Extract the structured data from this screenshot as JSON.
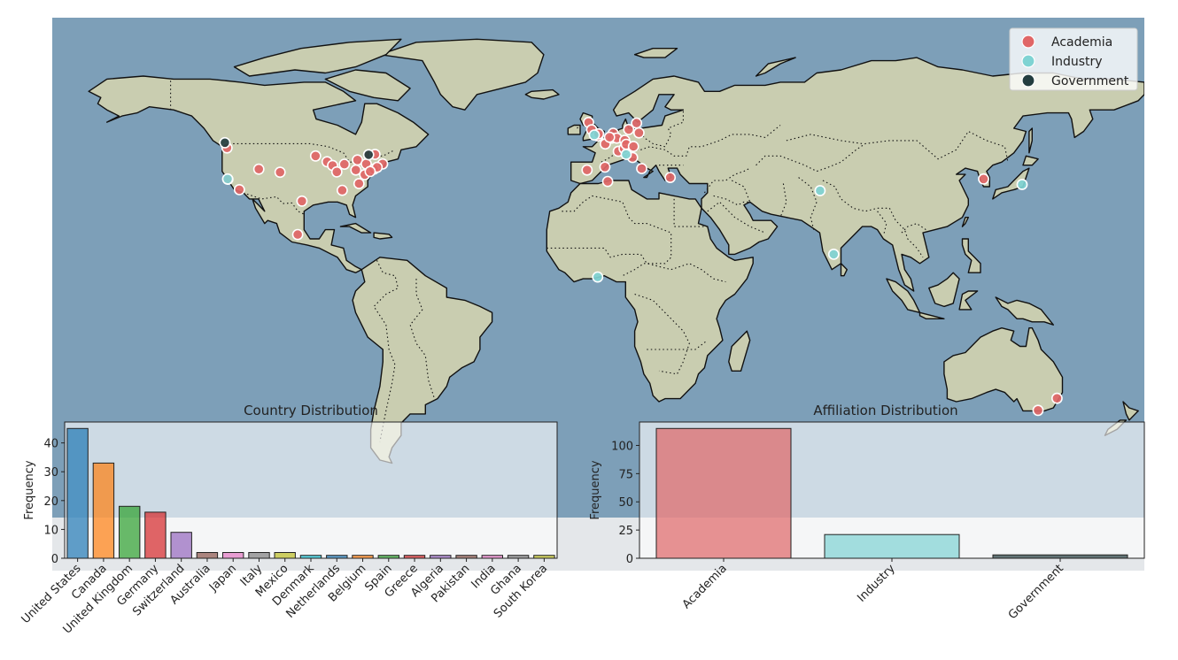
{
  "colors": {
    "academia": "#e06666",
    "industry": "#7fd3d3",
    "government": "#233d3f",
    "ocean": "#7d9fb8",
    "land": "#c9cdb0"
  },
  "legend": {
    "items": [
      {
        "label": "Academia",
        "color": "#e06666"
      },
      {
        "label": "Industry",
        "color": "#7fd3d3"
      },
      {
        "label": "Government",
        "color": "#233d3f"
      }
    ],
    "placement": "top-right"
  },
  "map_points": [
    {
      "lon": -122.4,
      "lat": 47.6,
      "cat": "academia"
    },
    {
      "lon": -122.1,
      "lat": 37.4,
      "cat": "academia"
    },
    {
      "lon": -118.3,
      "lat": 34.0,
      "cat": "academia"
    },
    {
      "lon": -111.9,
      "lat": 40.7,
      "cat": "academia"
    },
    {
      "lon": -104.9,
      "lat": 39.7,
      "cat": "academia"
    },
    {
      "lon": -97.7,
      "lat": 30.3,
      "cat": "academia"
    },
    {
      "lon": -99.1,
      "lat": 19.4,
      "cat": "academia"
    },
    {
      "lon": -93.2,
      "lat": 45.0,
      "cat": "academia"
    },
    {
      "lon": -89.4,
      "lat": 43.1,
      "cat": "academia"
    },
    {
      "lon": -87.6,
      "lat": 41.9,
      "cat": "academia"
    },
    {
      "lon": -86.2,
      "lat": 39.8,
      "cat": "academia"
    },
    {
      "lon": -84.4,
      "lat": 33.8,
      "cat": "academia"
    },
    {
      "lon": -83.7,
      "lat": 42.3,
      "cat": "academia"
    },
    {
      "lon": -79.9,
      "lat": 40.4,
      "cat": "academia"
    },
    {
      "lon": -79.4,
      "lat": 43.7,
      "cat": "academia"
    },
    {
      "lon": -78.9,
      "lat": 36.0,
      "cat": "academia"
    },
    {
      "lon": -77.0,
      "lat": 38.9,
      "cat": "academia"
    },
    {
      "lon": -76.5,
      "lat": 42.4,
      "cat": "academia"
    },
    {
      "lon": -75.7,
      "lat": 45.4,
      "cat": "academia"
    },
    {
      "lon": -74.0,
      "lat": 40.7,
      "cat": "academia"
    },
    {
      "lon": -73.6,
      "lat": 45.5,
      "cat": "academia"
    },
    {
      "lon": -71.1,
      "lat": 42.4,
      "cat": "academia"
    },
    {
      "lon": -72.9,
      "lat": 41.3,
      "cat": "academia"
    },
    {
      "lon": -75.2,
      "lat": 39.95,
      "cat": "academia"
    },
    {
      "lon": -123.1,
      "lat": 49.3,
      "cat": "government"
    },
    {
      "lon": -75.7,
      "lat": 45.4,
      "cat": "government"
    },
    {
      "lon": -122.2,
      "lat": 37.5,
      "cat": "industry"
    },
    {
      "lon": -3.2,
      "lat": 55.9,
      "cat": "academia"
    },
    {
      "lon": -2.2,
      "lat": 53.5,
      "cat": "academia"
    },
    {
      "lon": -0.1,
      "lat": 51.5,
      "cat": "academia"
    },
    {
      "lon": -1.3,
      "lat": 51.8,
      "cat": "industry"
    },
    {
      "lon": 0.1,
      "lat": 52.2,
      "cat": "academia"
    },
    {
      "lon": 2.3,
      "lat": 48.9,
      "cat": "academia"
    },
    {
      "lon": 4.9,
      "lat": 52.4,
      "cat": "academia"
    },
    {
      "lon": 4.4,
      "lat": 50.8,
      "cat": "academia"
    },
    {
      "lon": 6.1,
      "lat": 50.8,
      "cat": "academia"
    },
    {
      "lon": 6.6,
      "lat": 46.5,
      "cat": "academia"
    },
    {
      "lon": 8.5,
      "lat": 47.4,
      "cat": "academia"
    },
    {
      "lon": 8.7,
      "lat": 50.1,
      "cat": "academia"
    },
    {
      "lon": 9.2,
      "lat": 48.8,
      "cat": "academia"
    },
    {
      "lon": 10.0,
      "lat": 53.6,
      "cat": "academia"
    },
    {
      "lon": 11.6,
      "lat": 48.1,
      "cat": "academia"
    },
    {
      "lon": 12.6,
      "lat": 55.7,
      "cat": "academia"
    },
    {
      "lon": 13.4,
      "lat": 52.5,
      "cat": "academia"
    },
    {
      "lon": 11.3,
      "lat": 44.5,
      "cat": "academia"
    },
    {
      "lon": 9.2,
      "lat": 45.5,
      "cat": "industry"
    },
    {
      "lon": 3.7,
      "lat": 51.1,
      "cat": "academia"
    },
    {
      "lon": 14.3,
      "lat": 40.9,
      "cat": "academia"
    },
    {
      "lon": -3.7,
      "lat": 40.4,
      "cat": "academia"
    },
    {
      "lon": 2.2,
      "lat": 41.4,
      "cat": "academia"
    },
    {
      "lon": 23.7,
      "lat": 38.0,
      "cat": "academia"
    },
    {
      "lon": 3.1,
      "lat": 36.7,
      "cat": "academia"
    },
    {
      "lon": -0.2,
      "lat": 5.6,
      "cat": "industry"
    },
    {
      "lon": 73.1,
      "lat": 33.7,
      "cat": "industry"
    },
    {
      "lon": 77.6,
      "lat": 13.0,
      "cat": "industry"
    },
    {
      "lon": 127.0,
      "lat": 37.5,
      "cat": "academia"
    },
    {
      "lon": 139.7,
      "lat": 35.7,
      "cat": "industry"
    },
    {
      "lon": 151.2,
      "lat": -33.9,
      "cat": "academia"
    },
    {
      "lon": 144.96,
      "lat": -37.8,
      "cat": "academia"
    }
  ],
  "chart_data": [
    {
      "type": "bar",
      "title": "Country Distribution",
      "ylabel": "Frequency",
      "xlabel": "",
      "categories": [
        "United States",
        "Canada",
        "United Kingdom",
        "Germany",
        "Switzerland",
        "Australia",
        "Japan",
        "Italy",
        "Mexico",
        "Denmark",
        "Netherlands",
        "Belgium",
        "Spain",
        "Greece",
        "Algeria",
        "Pakistan",
        "India",
        "Ghana",
        "South Korea"
      ],
      "values": [
        45,
        33,
        18,
        16,
        9,
        2,
        2,
        2,
        2,
        1,
        1,
        1,
        1,
        1,
        1,
        1,
        1,
        1,
        1
      ],
      "colors": [
        "#1f77b4",
        "#ff7f0e",
        "#2ca02c",
        "#d62728",
        "#9467bd",
        "#8c564b",
        "#e377c2",
        "#7f7f7f",
        "#bcbd22",
        "#17becf",
        "#1f77b4",
        "#ff7f0e",
        "#2ca02c",
        "#d62728",
        "#9467bd",
        "#8c564b",
        "#e377c2",
        "#7f7f7f",
        "#bcbd22"
      ],
      "yticks": [
        0,
        10,
        20,
        30,
        40
      ],
      "ylim": [
        0,
        47.25
      ]
    },
    {
      "type": "bar",
      "title": "Affiliation Distribution",
      "ylabel": "Frequency",
      "xlabel": "",
      "categories": [
        "Academia",
        "Industry",
        "Government"
      ],
      "values": [
        115,
        21,
        3
      ],
      "colors": [
        "#e06666",
        "#7fd3d3",
        "#233d3f"
      ],
      "yticks": [
        0,
        25,
        50,
        75,
        100
      ],
      "ylim": [
        0,
        120.75
      ]
    }
  ]
}
